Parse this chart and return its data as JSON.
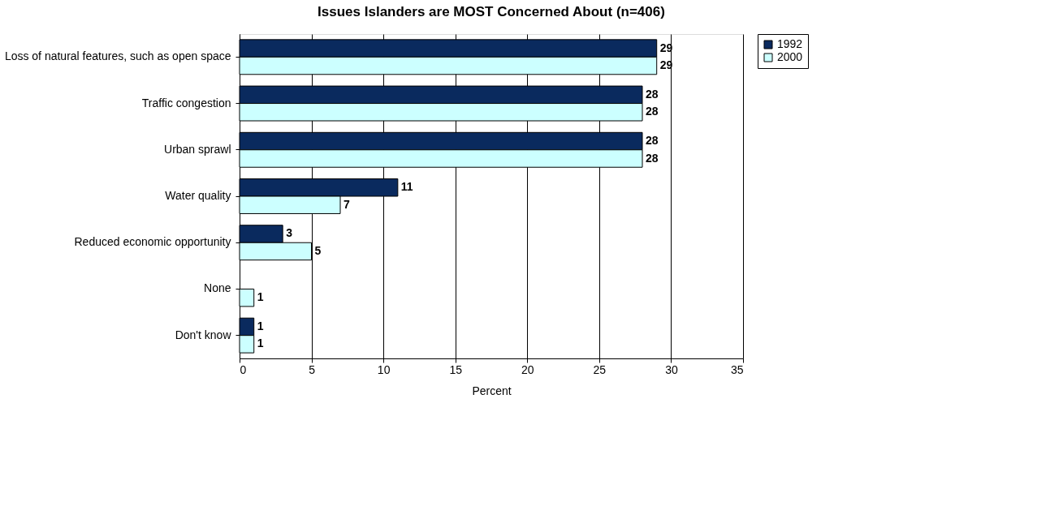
{
  "chart_data": {
    "type": "bar",
    "orientation": "horizontal",
    "title": "Issues Islanders are MOST Concerned About (n=406)",
    "xlabel": "Percent",
    "categories": [
      "Loss of natural features, such as open space",
      "Traffic congestion",
      "Urban sprawl",
      "Water quality",
      "Reduced economic opportunity",
      "None",
      "Don't know"
    ],
    "series": [
      {
        "name": "1992",
        "color": "#0a2a5e",
        "values": [
          29,
          28,
          28,
          11,
          3,
          null,
          1
        ]
      },
      {
        "name": "2000",
        "color": "#ccffff",
        "values": [
          29,
          28,
          28,
          7,
          5,
          1,
          1
        ]
      }
    ],
    "xlim": [
      0,
      35
    ],
    "xticks": [
      0,
      5,
      10,
      15,
      20,
      25,
      30,
      35
    ],
    "grid": "x",
    "legend": "right",
    "data_labels": true
  }
}
